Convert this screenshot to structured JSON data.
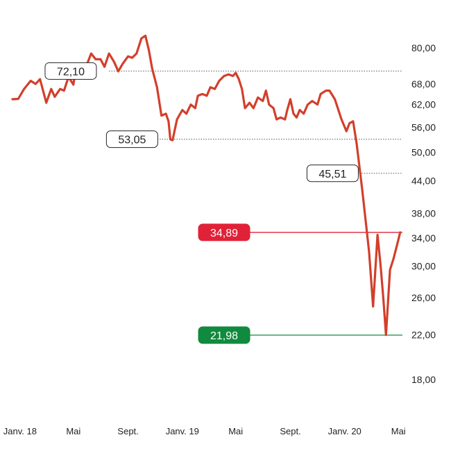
{
  "chart_data": {
    "type": "line",
    "title": "",
    "xlabel": "",
    "ylabel": "",
    "y_scale": "log",
    "ylim": [
      16,
      92
    ],
    "xlim": [
      "2017-12-15",
      "2020-05-10"
    ],
    "y_ticks": [
      "80,00",
      "68,00",
      "62,00",
      "56,00",
      "50,00",
      "44,00",
      "38,00",
      "34,00",
      "30,00",
      "26,00",
      "22,00",
      "18,00"
    ],
    "y_tick_values": [
      80,
      68,
      62,
      56,
      50,
      44,
      38,
      34,
      30,
      26,
      22,
      18
    ],
    "x_ticks": [
      {
        "label": "Janv. 18",
        "date": "2018-01-01"
      },
      {
        "label": "Mai",
        "date": "2018-05-01"
      },
      {
        "label": "Sept.",
        "date": "2018-09-01"
      },
      {
        "label": "Janv. 19",
        "date": "2019-01-01"
      },
      {
        "label": "Mai",
        "date": "2019-05-01"
      },
      {
        "label": "Sept.",
        "date": "2019-09-01"
      },
      {
        "label": "Janv. 20",
        "date": "2020-01-01"
      },
      {
        "label": "Mai",
        "date": "2020-05-01"
      }
    ],
    "line_color": "#d23f2b",
    "levels": [
      {
        "label": "72,10",
        "value": 72.1,
        "style": "dotted",
        "color": "#555555",
        "label_date": "2018-04-25",
        "start_date": "2018-07-20"
      },
      {
        "label": "53,05",
        "value": 53.05,
        "style": "dotted",
        "color": "#555555",
        "label_date": "2018-09-10",
        "start_date": "2018-10-20"
      },
      {
        "label": "45,51",
        "value": 45.51,
        "style": "dotted",
        "color": "#555555",
        "label_date": "2019-12-05",
        "start_date": "2020-01-01"
      },
      {
        "label": "34,89",
        "value": 34.89,
        "style": "solid",
        "color": "#e02238",
        "label_date": "2019-04-05",
        "start_date": "2019-05-10"
      },
      {
        "label": "21,98",
        "value": 21.98,
        "style": "solid",
        "color": "#108a3e",
        "label_date": "2019-04-05",
        "start_date": "2019-05-10"
      }
    ],
    "series": [
      {
        "points": [
          [
            "2017-12-15",
            63.5
          ],
          [
            "2017-12-28",
            63.6
          ],
          [
            "2018-01-10",
            66.5
          ],
          [
            "2018-01-25",
            69.0
          ],
          [
            "2018-02-05",
            68.0
          ],
          [
            "2018-02-15",
            69.5
          ],
          [
            "2018-03-01",
            62.5
          ],
          [
            "2018-03-12",
            66.5
          ],
          [
            "2018-03-20",
            64.2
          ],
          [
            "2018-04-01",
            66.5
          ],
          [
            "2018-04-10",
            66.0
          ],
          [
            "2018-04-20",
            70.2
          ],
          [
            "2018-05-01",
            67.8
          ],
          [
            "2018-05-05",
            72.0
          ],
          [
            "2018-05-20",
            73.5
          ],
          [
            "2018-06-01",
            74.5
          ],
          [
            "2018-06-10",
            78.0
          ],
          [
            "2018-06-20",
            76.0
          ],
          [
            "2018-07-01",
            76.0
          ],
          [
            "2018-07-10",
            73.5
          ],
          [
            "2018-07-20",
            78.0
          ],
          [
            "2018-08-01",
            75.0
          ],
          [
            "2018-08-10",
            72.0
          ],
          [
            "2018-08-20",
            74.5
          ],
          [
            "2018-09-01",
            77.0
          ],
          [
            "2018-09-10",
            76.5
          ],
          [
            "2018-09-20",
            78.0
          ],
          [
            "2018-10-01",
            83.5
          ],
          [
            "2018-10-10",
            84.5
          ],
          [
            "2018-10-18",
            79.0
          ],
          [
            "2018-10-25",
            73.0
          ],
          [
            "2018-11-05",
            67.0
          ],
          [
            "2018-11-15",
            59.0
          ],
          [
            "2018-11-25",
            59.5
          ],
          [
            "2018-12-01",
            57.5
          ],
          [
            "2018-12-05",
            53.0
          ],
          [
            "2018-12-10",
            52.8
          ],
          [
            "2018-12-20",
            58.0
          ],
          [
            "2019-01-01",
            60.5
          ],
          [
            "2019-01-10",
            59.5
          ],
          [
            "2019-01-20",
            62.0
          ],
          [
            "2019-01-30",
            61.0
          ],
          [
            "2019-02-05",
            64.5
          ],
          [
            "2019-02-15",
            65.0
          ],
          [
            "2019-02-25",
            64.5
          ],
          [
            "2019-03-05",
            67.0
          ],
          [
            "2019-03-15",
            66.5
          ],
          [
            "2019-03-25",
            69.0
          ],
          [
            "2019-04-05",
            70.5
          ],
          [
            "2019-04-15",
            71.0
          ],
          [
            "2019-04-25",
            70.5
          ],
          [
            "2019-05-01",
            71.5
          ],
          [
            "2019-05-08",
            69.5
          ],
          [
            "2019-05-15",
            66.5
          ],
          [
            "2019-05-22",
            61.0
          ],
          [
            "2019-06-01",
            62.5
          ],
          [
            "2019-06-10",
            61.0
          ],
          [
            "2019-06-20",
            64.0
          ],
          [
            "2019-07-01",
            63.0
          ],
          [
            "2019-07-08",
            66.0
          ],
          [
            "2019-07-15",
            62.0
          ],
          [
            "2019-07-25",
            61.0
          ],
          [
            "2019-08-01",
            58.0
          ],
          [
            "2019-08-10",
            58.5
          ],
          [
            "2019-08-20",
            58.0
          ],
          [
            "2019-08-25",
            60.5
          ],
          [
            "2019-09-01",
            63.5
          ],
          [
            "2019-09-08",
            59.5
          ],
          [
            "2019-09-15",
            58.5
          ],
          [
            "2019-09-22",
            60.5
          ],
          [
            "2019-10-01",
            59.5
          ],
          [
            "2019-10-10",
            62.0
          ],
          [
            "2019-10-20",
            63.0
          ],
          [
            "2019-11-01",
            62.0
          ],
          [
            "2019-11-08",
            65.0
          ],
          [
            "2019-11-20",
            66.0
          ],
          [
            "2019-11-28",
            66.0
          ],
          [
            "2019-12-10",
            63.5
          ],
          [
            "2019-12-25",
            58.0
          ],
          [
            "2020-01-05",
            55.0
          ],
          [
            "2020-01-12",
            57.0
          ],
          [
            "2020-01-20",
            57.5
          ],
          [
            "2020-01-28",
            52.0
          ],
          [
            "2020-02-10",
            42.0
          ],
          [
            "2020-02-25",
            32.0
          ],
          [
            "2020-03-05",
            25.0
          ],
          [
            "2020-03-15",
            34.5
          ],
          [
            "2020-03-22",
            30.0
          ],
          [
            "2020-03-28",
            26.0
          ],
          [
            "2020-04-03",
            22.0
          ],
          [
            "2020-04-12",
            29.5
          ],
          [
            "2020-04-20",
            31.0
          ],
          [
            "2020-04-28",
            33.0
          ],
          [
            "2020-05-05",
            34.89
          ]
        ]
      }
    ]
  }
}
